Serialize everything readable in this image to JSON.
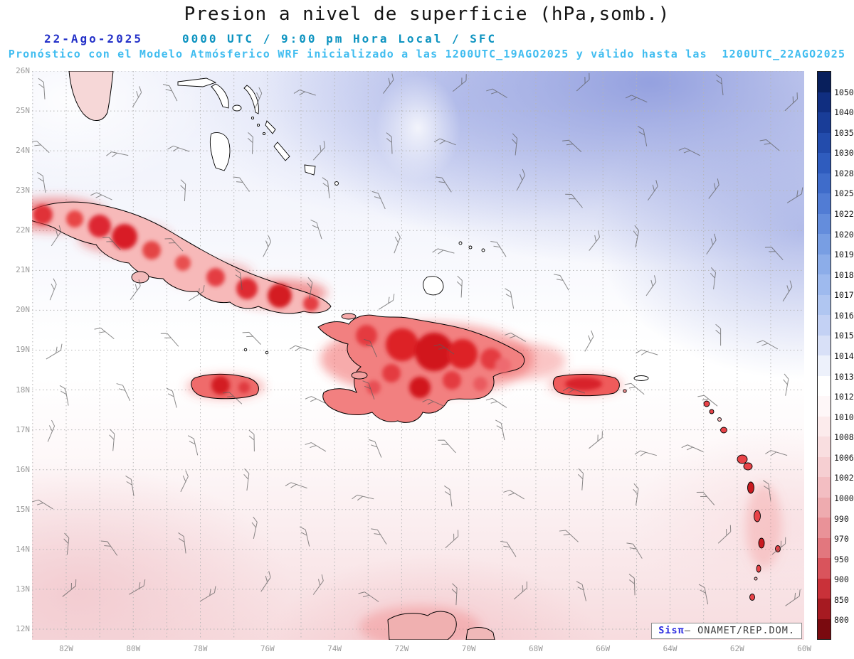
{
  "header": {
    "title": "Presion a nivel de superficie (hPa,somb.)",
    "date": "22-Ago-2025",
    "time_line": "0000 UTC / 9:00 pm Hora Local / SFC",
    "forecast_line": "Pronóstico con el Modelo Atmósferico WRF inicializado a las 1200UTC_19AGO2025 y válido hasta las  1200UTC_22AGO2025"
  },
  "map": {
    "lat_labels": [
      "26N",
      "25N",
      "24N",
      "23N",
      "22N",
      "21N",
      "20N",
      "19N",
      "18N",
      "17N",
      "16N",
      "15N",
      "14N",
      "13N",
      "12N"
    ],
    "lon_labels": [
      "82W",
      "80W",
      "78W",
      "76W",
      "74W",
      "72W",
      "70W",
      "68W",
      "66W",
      "64W",
      "62W",
      "60W"
    ],
    "credit": {
      "brand": "Sisπ",
      "separator": "— ",
      "org": "ONAMET/REP.DOM."
    }
  },
  "colorbar": {
    "labels": [
      "1050",
      "1040",
      "1035",
      "1030",
      "1028",
      "1025",
      "1022",
      "1020",
      "1019",
      "1018",
      "1017",
      "1016",
      "1015",
      "1014",
      "1013",
      "1012",
      "1010",
      "1008",
      "1006",
      "1002",
      "1000",
      "990",
      "970",
      "950",
      "900",
      "850",
      "800"
    ],
    "colors": [
      "#081f5c",
      "#102e80",
      "#193d98",
      "#234cac",
      "#2f5cbe",
      "#3f6cca",
      "#517cd4",
      "#648ddc",
      "#789ee3",
      "#8cade9",
      "#9ebaee",
      "#b0c6f1",
      "#c3d1f4",
      "#d8e0f7",
      "#edf1fb",
      "#ffffff",
      "#fef7f8",
      "#fcebec",
      "#f9dee0",
      "#f6cfd2",
      "#f3bec2",
      "#eeabaf",
      "#e99298",
      "#e2777e",
      "#d9545c",
      "#c93139",
      "#a61a21",
      "#7a0a0f"
    ]
  }
}
